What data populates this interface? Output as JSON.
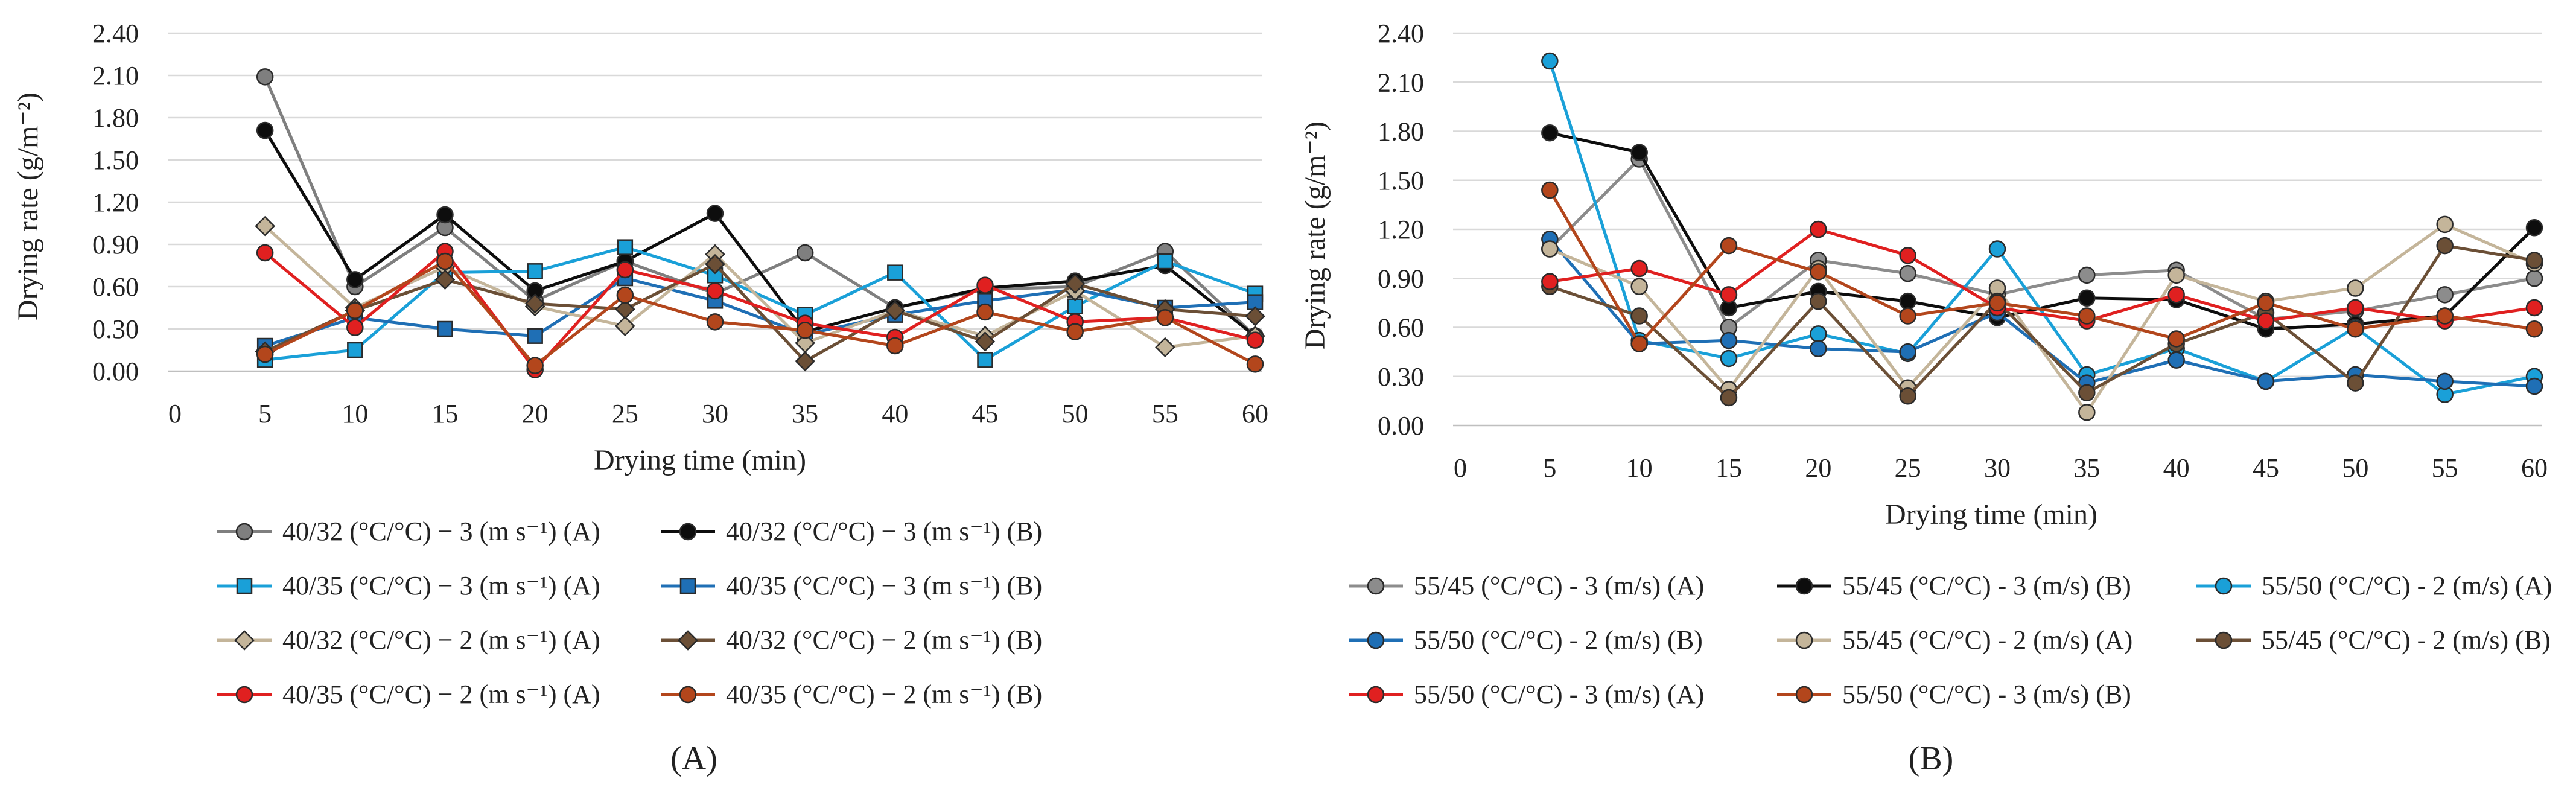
{
  "chart_data": [
    {
      "type": "line",
      "panel_label": "(A)",
      "xlabel": "Drying time (min)",
      "ylabel": "Drying rate (g/m⁻²)",
      "ylim": [
        0,
        2.4
      ],
      "yticks": [
        "0.00",
        "0.30",
        "0.60",
        "0.90",
        "1.20",
        "1.50",
        "1.80",
        "2.10",
        "2.40"
      ],
      "x": [
        0,
        5,
        10,
        15,
        20,
        25,
        30,
        35,
        40,
        45,
        50,
        55,
        60
      ],
      "grid": "horizontal",
      "legend_position": "bottom",
      "series": [
        {
          "name": "40/32 (°C/°C) − 3 (m s⁻¹) (A)",
          "color": "#7f7f7f",
          "marker": "circle",
          "values": [
            null,
            2.09,
            0.6,
            1.02,
            0.5,
            0.78,
            0.55,
            0.84,
            0.45,
            0.58,
            0.6,
            0.85,
            0.25
          ]
        },
        {
          "name": "40/32 (°C/°C) − 3 (m s⁻¹) (B)",
          "color": "#0d0d0d",
          "marker": "circle",
          "values": [
            null,
            1.71,
            0.65,
            1.11,
            0.57,
            0.78,
            1.12,
            0.28,
            0.45,
            0.59,
            0.64,
            0.75,
            0.25
          ]
        },
        {
          "name": "40/35 (°C/°C) − 3 (m s⁻¹) (A)",
          "color": "#1aa0d8",
          "marker": "square",
          "values": [
            null,
            0.08,
            0.15,
            0.7,
            0.71,
            0.88,
            0.68,
            0.4,
            0.7,
            0.08,
            0.46,
            0.78,
            0.55
          ]
        },
        {
          "name": "40/35 (°C/°C) − 3 (m s⁻¹) (B)",
          "color": "#1f6fb5",
          "marker": "square",
          "values": [
            null,
            0.18,
            0.38,
            0.3,
            0.25,
            0.66,
            0.5,
            0.26,
            0.4,
            0.5,
            0.58,
            0.45,
            0.49
          ]
        },
        {
          "name": "40/32 (°C/°C) − 2 (m s⁻¹) (A)",
          "color": "#c4b59a",
          "marker": "diamond",
          "values": [
            null,
            1.03,
            0.45,
            0.74,
            0.46,
            0.32,
            0.83,
            0.2,
            0.43,
            0.25,
            0.57,
            0.17,
            0.25
          ]
        },
        {
          "name": "40/32 (°C/°C) − 2 (m s⁻¹) (B)",
          "color": "#6b4f36",
          "marker": "diamond",
          "values": [
            null,
            0.14,
            0.43,
            0.65,
            0.48,
            0.44,
            0.76,
            0.07,
            0.43,
            0.21,
            0.62,
            0.44,
            0.39
          ]
        },
        {
          "name": "40/35 (°C/°C) − 2 (m s⁻¹) (A)",
          "color": "#e02020",
          "marker": "circle",
          "values": [
            null,
            0.84,
            0.31,
            0.85,
            0.01,
            0.72,
            0.57,
            0.34,
            0.24,
            0.61,
            0.35,
            0.38,
            0.22
          ]
        },
        {
          "name": "40/35 (°C/°C) − 2 (m s⁻¹) (B)",
          "color": "#b3461c",
          "marker": "circle",
          "values": [
            null,
            0.12,
            0.43,
            0.78,
            0.04,
            0.54,
            0.35,
            0.29,
            0.18,
            0.42,
            0.28,
            0.38,
            0.05
          ]
        }
      ]
    },
    {
      "type": "line",
      "panel_label": "(B)",
      "xlabel": "Drying time (min)",
      "ylabel": "Drying rate (g/m⁻²)",
      "ylim": [
        0,
        2.4
      ],
      "yticks": [
        "0.00",
        "0.30",
        "0.60",
        "0.90",
        "1.20",
        "1.50",
        "1.80",
        "2.10",
        "2.40"
      ],
      "x": [
        0,
        5,
        10,
        15,
        20,
        25,
        30,
        35,
        40,
        45,
        50,
        55,
        60
      ],
      "grid": "horizontal",
      "legend_position": "bottom",
      "series": [
        {
          "name": "55/45 (°C/°C) - 3 (m/s) (A)",
          "color": "#8c8c8c",
          "marker": "circle",
          "values": [
            null,
            1.08,
            1.63,
            0.6,
            1.01,
            0.93,
            0.8,
            0.92,
            0.95,
            0.65,
            0.7,
            0.8,
            0.9
          ]
        },
        {
          "name": "55/45 (°C/°C) - 3 (m/s) (B)",
          "color": "#0d0d0d",
          "marker": "circle",
          "values": [
            null,
            1.79,
            1.67,
            0.72,
            0.82,
            0.76,
            0.66,
            0.78,
            0.77,
            0.59,
            0.62,
            0.67,
            1.21
          ]
        },
        {
          "name": "55/50 (°C/°C) - 2 (m/s) (A)",
          "color": "#1aa0d8",
          "marker": "circle",
          "values": [
            null,
            2.23,
            0.52,
            0.41,
            0.56,
            0.44,
            1.08,
            0.31,
            0.47,
            0.27,
            0.6,
            0.19,
            0.3
          ]
        },
        {
          "name": "55/50 (°C/°C) - 2 (m/s) (B)",
          "color": "#1f6fb5",
          "marker": "circle",
          "values": [
            null,
            1.14,
            0.5,
            0.52,
            0.47,
            0.45,
            0.69,
            0.26,
            0.4,
            0.27,
            0.31,
            0.27,
            0.24
          ]
        },
        {
          "name": "55/45 (°C/°C) - 2 (m/s) (A)",
          "color": "#c4b59a",
          "marker": "circle",
          "values": [
            null,
            1.08,
            0.85,
            0.22,
            0.96,
            0.23,
            0.84,
            0.08,
            0.92,
            0.76,
            0.84,
            1.23,
            0.99
          ]
        },
        {
          "name": "55/45 (°C/°C) - 2 (m/s) (B)",
          "color": "#6b4f36",
          "marker": "circle",
          "values": [
            null,
            0.85,
            0.67,
            0.17,
            0.76,
            0.18,
            0.76,
            0.2,
            0.5,
            0.69,
            0.26,
            1.1,
            1.01
          ]
        },
        {
          "name": "55/50 (°C/°C) - 3 (m/s) (A)",
          "color": "#e02020",
          "marker": "circle",
          "values": [
            null,
            0.88,
            0.96,
            0.8,
            1.2,
            1.04,
            0.72,
            0.64,
            0.8,
            0.64,
            0.72,
            0.64,
            0.72
          ]
        },
        {
          "name": "55/50 (°C/°C) - 3 (m/s) (B)",
          "color": "#b3461c",
          "marker": "circle",
          "values": [
            null,
            1.44,
            0.5,
            1.1,
            0.94,
            0.67,
            0.75,
            0.67,
            0.53,
            0.75,
            0.59,
            0.67,
            0.59
          ]
        }
      ]
    }
  ]
}
